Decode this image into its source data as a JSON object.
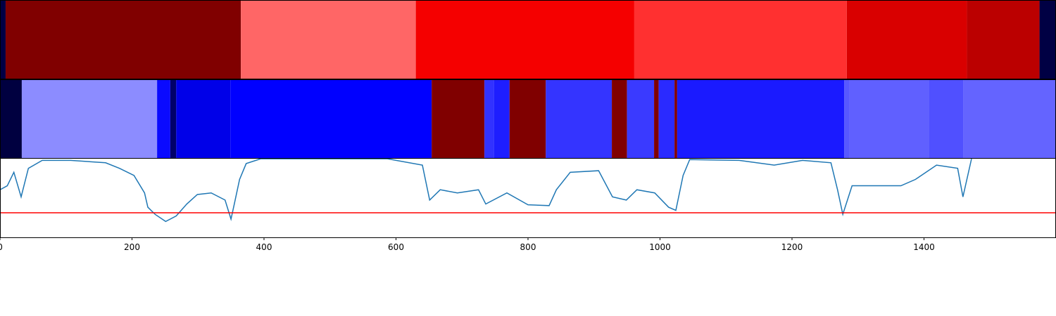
{
  "chart_data": [
    {
      "type": "strip",
      "xlim": [
        0,
        1600
      ],
      "bins": [
        0,
        8.5,
        365,
        630,
        961,
        1283,
        1465,
        1575,
        1600
      ],
      "colors": [
        "#000044",
        "#800000",
        "#ff6666",
        "#f50000",
        "#ff3030",
        "#d90000",
        "#bb0000",
        "#000044"
      ]
    },
    {
      "type": "strip",
      "xlim": [
        0,
        1600
      ],
      "bins": [
        0,
        33,
        238,
        258,
        267,
        349,
        654,
        734,
        748,
        772,
        827,
        927,
        950,
        991,
        998,
        1022,
        1026,
        1279,
        1287,
        1408,
        1460,
        1600
      ],
      "colors": [
        "#000040",
        "#8c8cff",
        "#0a0aff",
        "#00006a",
        "#0000e8",
        "#0000ff",
        "#800000",
        "#3232ff",
        "#1e1eff",
        "#800000",
        "#3434ff",
        "#800000",
        "#3a3aff",
        "#800000",
        "#2a2aff",
        "#800000",
        "#1a1aff",
        "#5858ff",
        "#6060ff",
        "#5050ff",
        "#6464ff"
      ]
    },
    {
      "type": "line",
      "xlim": [
        0,
        1600
      ],
      "ylim": [
        0,
        1
      ],
      "xticks": [
        0,
        200,
        400,
        600,
        800,
        1000,
        1200,
        1400
      ],
      "x": [
        0,
        11,
        21,
        32,
        43,
        64,
        107,
        160,
        181,
        203,
        219,
        224,
        235,
        251,
        267,
        283,
        299,
        320,
        341,
        350,
        355,
        363,
        373,
        395,
        480,
        587,
        640,
        651,
        667,
        693,
        725,
        736,
        768,
        800,
        832,
        843,
        864,
        907,
        928,
        949,
        965,
        992,
        1013,
        1024,
        1035,
        1045,
        1120,
        1173,
        1216,
        1259,
        1269,
        1277,
        1291,
        1333,
        1365,
        1387,
        1419,
        1451,
        1459,
        1472
      ],
      "series": [
        {
          "color": "#1f77b4",
          "values": [
            0.6,
            0.65,
            0.82,
            0.51,
            0.87,
            0.97,
            0.97,
            0.94,
            0.87,
            0.78,
            0.56,
            0.38,
            0.29,
            0.2,
            0.27,
            0.42,
            0.54,
            0.56,
            0.47,
            0.23,
            0.42,
            0.73,
            0.93,
            0.99,
            0.99,
            0.99,
            0.91,
            0.47,
            0.6,
            0.56,
            0.6,
            0.42,
            0.56,
            0.41,
            0.4,
            0.6,
            0.82,
            0.84,
            0.51,
            0.47,
            0.6,
            0.56,
            0.38,
            0.34,
            0.78,
            0.98,
            0.97,
            0.91,
            0.97,
            0.94,
            0.6,
            0.29,
            0.65,
            0.65,
            0.65,
            0.73,
            0.91,
            0.87,
            0.51,
            0.99
          ]
        }
      ],
      "hline": {
        "value": 0.31,
        "color": "#ff0000"
      }
    }
  ]
}
